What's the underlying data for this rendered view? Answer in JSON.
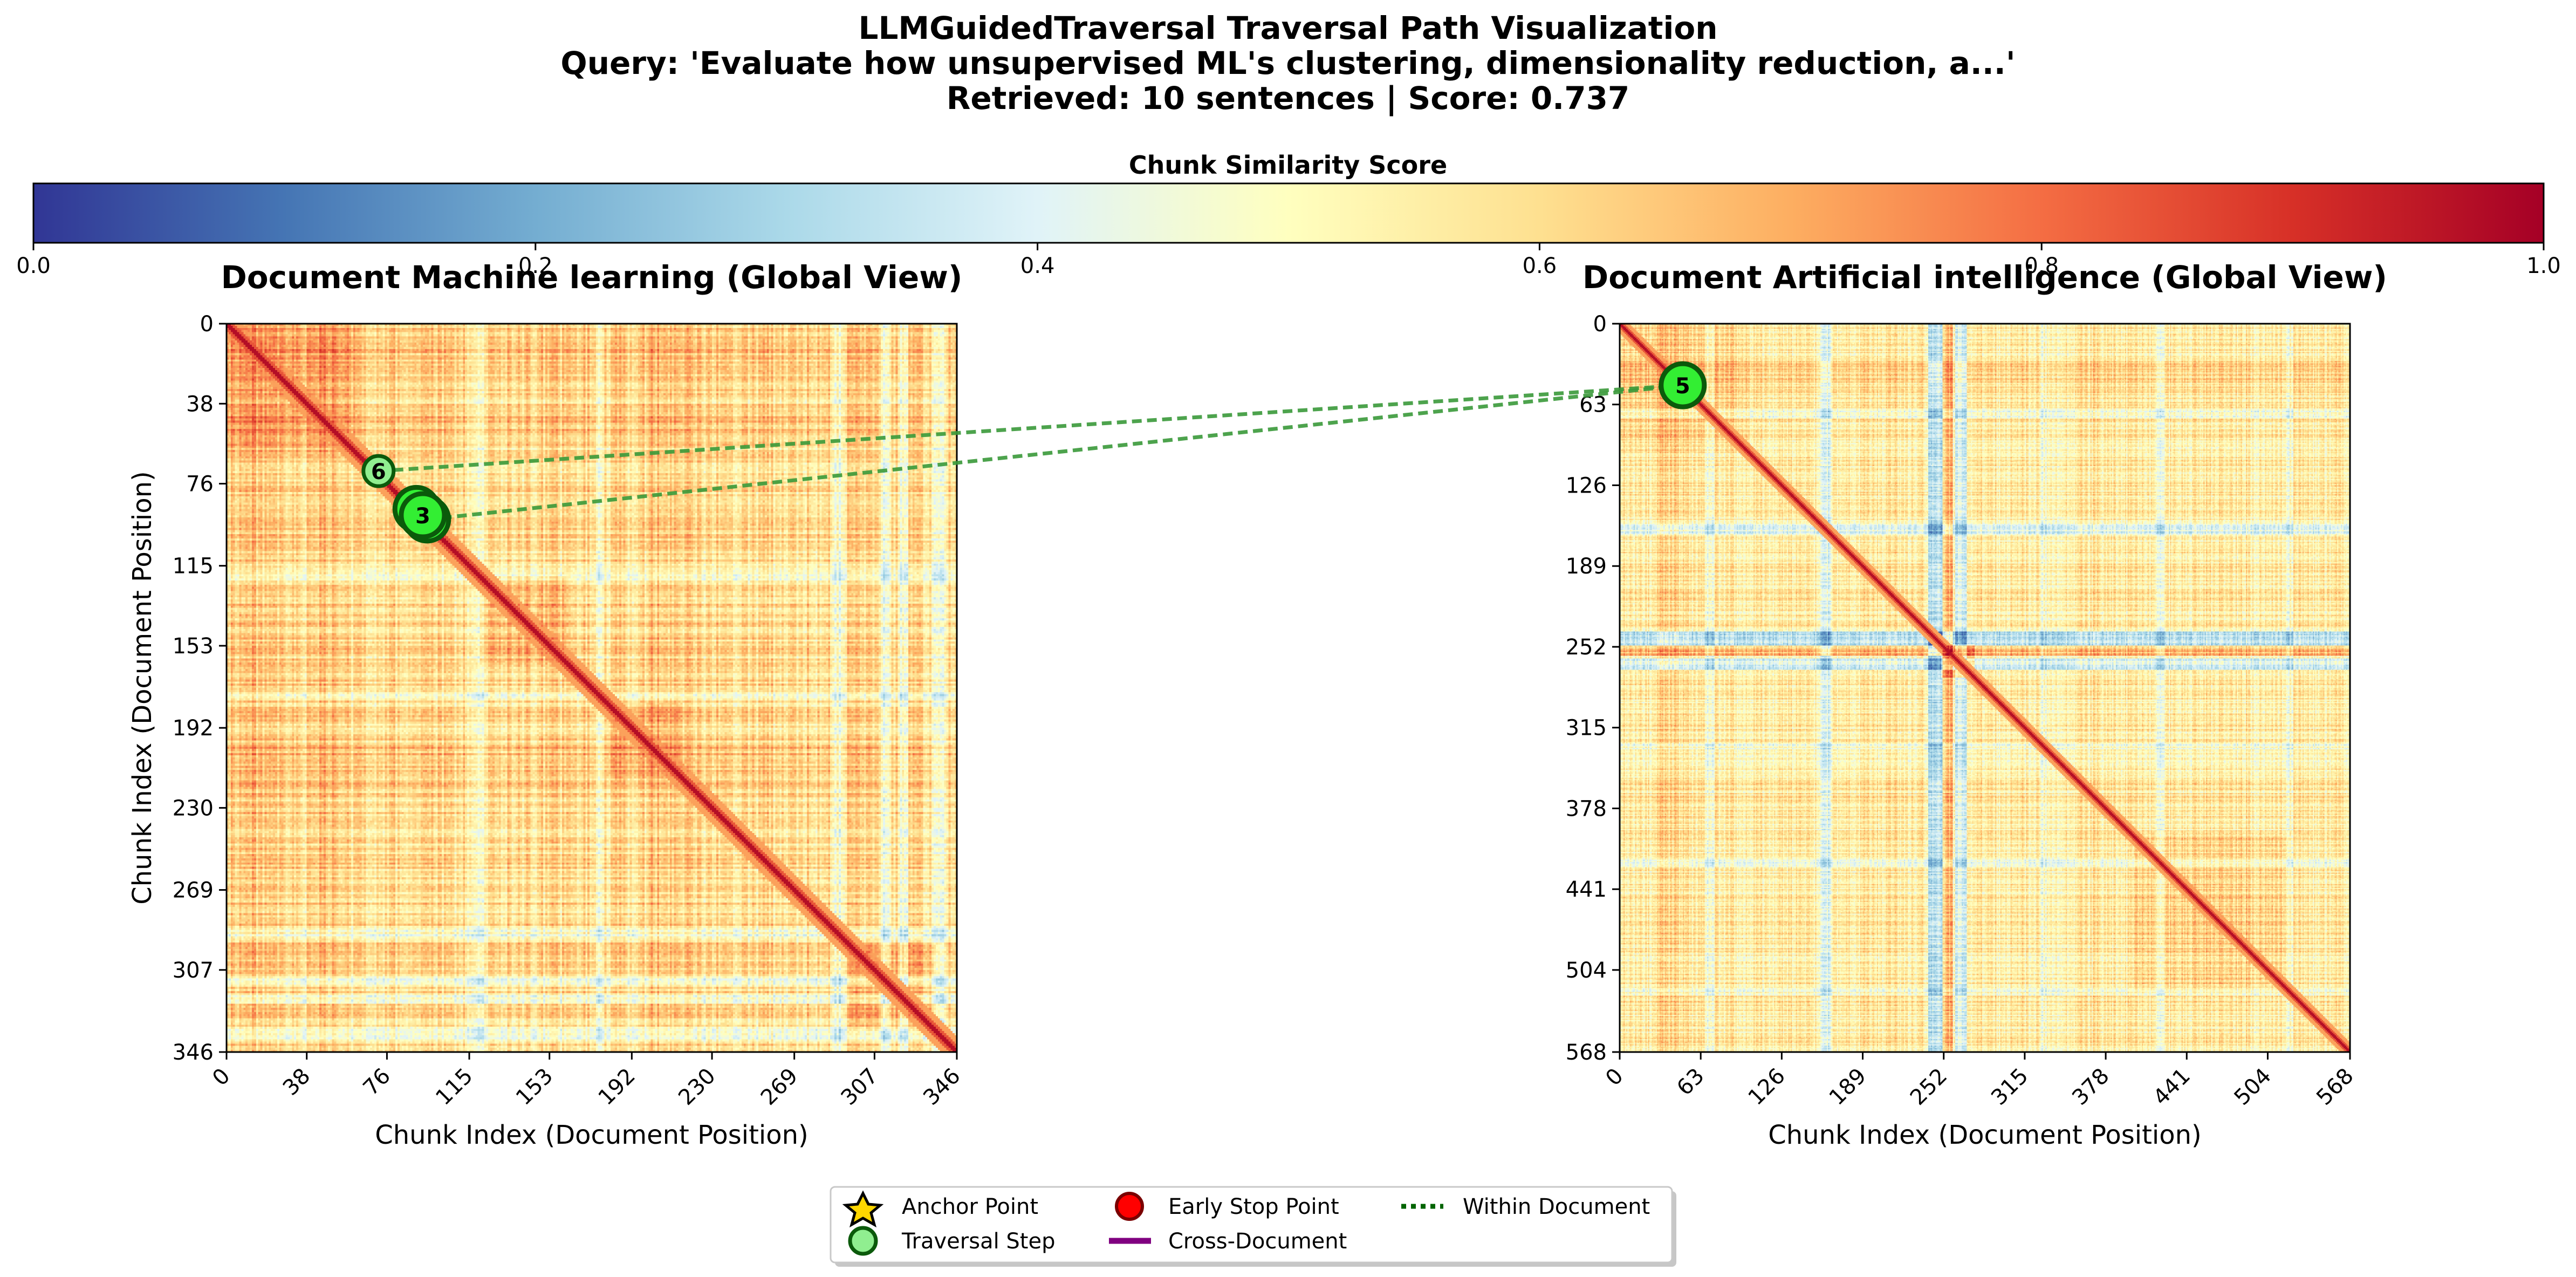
{
  "figure": {
    "title_lines": [
      "LLMGuidedTraversal Traversal Path Visualization",
      "Query: 'Evaluate how unsupervised ML's clustering, dimensionality reduction, a...'",
      "Retrieved: 10 sentences | Score: 0.737"
    ]
  },
  "colorbar": {
    "label": "Chunk Similarity Score",
    "ticks": [
      "0.0",
      "0.2",
      "0.4",
      "0.6",
      "0.8",
      "1.0"
    ],
    "tick_values": [
      0,
      0.2,
      0.4,
      0.6,
      0.8,
      1.0
    ],
    "range": [
      0,
      1
    ],
    "colormap": [
      "#313695",
      "#4575b4",
      "#74add1",
      "#abd9e9",
      "#e0f3f8",
      "#ffffbf",
      "#fee090",
      "#fdae61",
      "#f46d43",
      "#d73027",
      "#a50026"
    ]
  },
  "chart_data": [
    {
      "type": "heatmap",
      "title": "Document Machine learning (Global View)",
      "xlabel": "Chunk Index (Document Position)",
      "ylabel": "Chunk Index (Document Position)",
      "size": 346,
      "xlim": [
        0,
        346
      ],
      "ylim": [
        346,
        0
      ],
      "ticks": [
        0,
        38,
        76,
        115,
        153,
        192,
        230,
        269,
        307,
        346
      ],
      "tick_labels": [
        "0",
        "38",
        "76",
        "115",
        "153",
        "192",
        "230",
        "269",
        "307",
        "346"
      ],
      "points": [
        {
          "label": "6",
          "x": 72,
          "y": 70,
          "kind": "traversal_step"
        },
        {
          "label": "7",
          "x": 90,
          "y": 88,
          "kind": "traversal_step"
        },
        {
          "label": "8",
          "x": 95,
          "y": 93,
          "kind": "traversal_step"
        },
        {
          "label": "3",
          "x": 93,
          "y": 91,
          "kind": "traversal_step"
        }
      ]
    },
    {
      "type": "heatmap",
      "title": "Document Artificial intelligence (Global View)",
      "xlabel": "Chunk Index (Document Position)",
      "ylabel": "",
      "size": 568,
      "xlim": [
        0,
        568
      ],
      "ylim": [
        568,
        0
      ],
      "ticks": [
        0,
        63,
        126,
        189,
        252,
        315,
        378,
        441,
        504,
        568
      ],
      "tick_labels": [
        "0",
        "63",
        "126",
        "189",
        "252",
        "315",
        "378",
        "441",
        "504",
        "568"
      ],
      "points": [
        {
          "label": "5",
          "x": 49,
          "y": 48,
          "kind": "traversal_step"
        }
      ]
    }
  ],
  "cross_links": [
    {
      "from_doc": 0,
      "from": [
        72,
        70
      ],
      "to_doc": 1,
      "to": [
        49,
        48
      ]
    },
    {
      "from_doc": 0,
      "from": [
        95,
        93
      ],
      "to_doc": 1,
      "to": [
        49,
        48
      ]
    }
  ],
  "legend": {
    "placement": "bottom-center",
    "items": [
      {
        "label": "Anchor Point",
        "marker": "star-icon",
        "color": "#ffd700"
      },
      {
        "label": "Traversal Step",
        "marker": "circle-icon",
        "color": "#90ee90"
      },
      {
        "label": "Early Stop Point",
        "marker": "circle-icon",
        "color": "#ff0000"
      },
      {
        "label": "Cross-Document",
        "marker": "solid-line-icon",
        "color": "#800080"
      },
      {
        "label": "Within Document",
        "marker": "dotted-line-icon",
        "color": "#006400"
      }
    ]
  },
  "colors": {
    "point_fill": "#33ee33",
    "point_light_fill": "#90ee90",
    "point_edge": "#0b5a0b",
    "link": "#3a9a3a"
  }
}
